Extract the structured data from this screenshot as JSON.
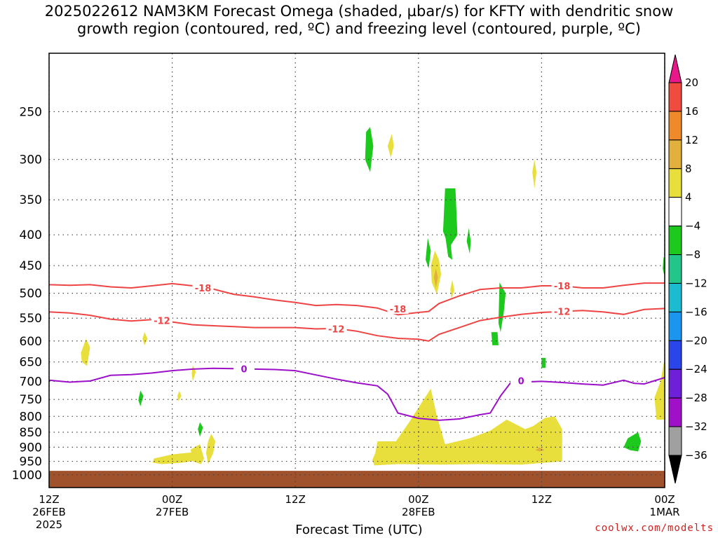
{
  "title": "2025022612 NAM3KM Forecast Omega (shaded, µbar/s) for KFTY with dendritic snow\ngrowth region (contoured, red, ºC) and freezing level (contoured, purple, ºC)",
  "credit": "coolwx.com/modelts",
  "chart_data": {
    "type": "time-height",
    "xlabel": "Forecast Time (UTC)",
    "ylabel": "",
    "x_ticks": [
      {
        "hour": 0,
        "label": [
          "12Z",
          "26FEB",
          "2025"
        ]
      },
      {
        "hour": 12,
        "label": [
          "00Z",
          "27FEB"
        ]
      },
      {
        "hour": 24,
        "label": [
          "12Z"
        ]
      },
      {
        "hour": 36,
        "label": [
          "00Z",
          "28FEB"
        ]
      },
      {
        "hour": 48,
        "label": [
          "12Z"
        ]
      },
      {
        "hour": 60,
        "label": [
          "00Z",
          "1MAR"
        ]
      }
    ],
    "xlim": [
      0,
      60
    ],
    "y_scale": "log-pressure",
    "ylim": [
      1050,
      200
    ],
    "y_ticks": [
      250,
      300,
      350,
      400,
      450,
      500,
      550,
      600,
      650,
      700,
      750,
      800,
      850,
      900,
      950,
      1000
    ],
    "grid": true,
    "ground": {
      "top_pressure": 985,
      "color": "#a0522d"
    },
    "colorbar": {
      "levels": [
        20,
        16,
        12,
        8,
        4,
        -4,
        -8,
        -12,
        -16,
        -20,
        -24,
        -28,
        -32,
        -36
      ],
      "colors": [
        "#e8178a",
        "#ef4b3f",
        "#ee8a2a",
        "#e2b03c",
        "#e8df3c",
        "#ffffff",
        "#1dc91d",
        "#22c58a",
        "#1cbcd0",
        "#1a96ee",
        "#2b46e8",
        "#6e20d8",
        "#a010c8",
        "#a0a0a0",
        "#000000"
      ]
    },
    "contours": [
      {
        "series": "dendritic snow growth region",
        "level": -18,
        "label": "-18",
        "color": "#ef4444",
        "points": [
          [
            0,
            484
          ],
          [
            2,
            485
          ],
          [
            4,
            484
          ],
          [
            6,
            488
          ],
          [
            8,
            490
          ],
          [
            10,
            486
          ],
          [
            12,
            482
          ],
          [
            14,
            486
          ],
          [
            16,
            492
          ],
          [
            18,
            502
          ],
          [
            20,
            507
          ],
          [
            22,
            513
          ],
          [
            24,
            518
          ],
          [
            26,
            524
          ],
          [
            28,
            522
          ],
          [
            30,
            524
          ],
          [
            32,
            529
          ],
          [
            34,
            543
          ],
          [
            36,
            538
          ],
          [
            37,
            536
          ],
          [
            38,
            520
          ],
          [
            40,
            505
          ],
          [
            42,
            493
          ],
          [
            44,
            490
          ],
          [
            46,
            490
          ],
          [
            48,
            486
          ],
          [
            50,
            486
          ],
          [
            52,
            490
          ],
          [
            54,
            490
          ],
          [
            56,
            485
          ],
          [
            58,
            481
          ],
          [
            60,
            481
          ]
        ],
        "label_at": [
          [
            15,
            490
          ],
          [
            34,
            531
          ],
          [
            50,
            486
          ]
        ]
      },
      {
        "series": "dendritic snow growth region",
        "level": -12,
        "label": "-12",
        "color": "#ef4444",
        "points": [
          [
            0,
            537
          ],
          [
            2,
            539
          ],
          [
            4,
            544
          ],
          [
            6,
            552
          ],
          [
            8,
            556
          ],
          [
            10,
            553
          ],
          [
            12,
            558
          ],
          [
            14,
            564
          ],
          [
            16,
            566
          ],
          [
            18,
            568
          ],
          [
            20,
            570
          ],
          [
            22,
            570
          ],
          [
            24,
            570
          ],
          [
            26,
            573
          ],
          [
            28,
            572
          ],
          [
            30,
            578
          ],
          [
            32,
            588
          ],
          [
            34,
            594
          ],
          [
            36,
            596
          ],
          [
            37,
            600
          ],
          [
            38,
            585
          ],
          [
            40,
            570
          ],
          [
            42,
            555
          ],
          [
            44,
            548
          ],
          [
            46,
            542
          ],
          [
            48,
            538
          ],
          [
            50,
            536
          ],
          [
            52,
            534
          ],
          [
            54,
            537
          ],
          [
            56,
            542
          ],
          [
            58,
            532
          ],
          [
            60,
            530
          ]
        ],
        "label_at": [
          [
            11,
            555
          ],
          [
            28,
            573
          ],
          [
            50,
            536
          ]
        ]
      },
      {
        "series": "freezing level",
        "level": 0,
        "label": "0",
        "color": "#9b10c8",
        "points": [
          [
            0,
            697
          ],
          [
            2,
            702
          ],
          [
            4,
            699
          ],
          [
            6,
            684
          ],
          [
            8,
            682
          ],
          [
            10,
            678
          ],
          [
            12,
            672
          ],
          [
            14,
            668
          ],
          [
            16,
            666
          ],
          [
            18,
            667
          ],
          [
            20,
            668
          ],
          [
            22,
            669
          ],
          [
            24,
            672
          ],
          [
            26,
            683
          ],
          [
            28,
            694
          ],
          [
            30,
            704
          ],
          [
            32,
            712
          ],
          [
            33,
            735
          ],
          [
            34,
            790
          ],
          [
            36,
            806
          ],
          [
            38,
            812
          ],
          [
            40,
            808
          ],
          [
            42,
            795
          ],
          [
            43,
            790
          ],
          [
            44,
            740
          ],
          [
            45,
            703
          ],
          [
            46,
            702
          ],
          [
            48,
            700
          ],
          [
            50,
            703
          ],
          [
            52,
            707
          ],
          [
            54,
            710
          ],
          [
            56,
            697
          ],
          [
            57,
            705
          ],
          [
            58,
            707
          ],
          [
            60,
            690
          ]
        ],
        "label_at": [
          [
            19,
            667
          ],
          [
            46,
            698
          ]
        ]
      }
    ],
    "omega_regions": [
      {
        "value": -8,
        "pts": [
          [
            31.3,
            265
          ],
          [
            31.6,
            285
          ],
          [
            31.3,
            315
          ],
          [
            30.8,
            300
          ],
          [
            30.9,
            270
          ]
        ]
      },
      {
        "value": 4,
        "pts": [
          [
            33.4,
            272
          ],
          [
            33.6,
            285
          ],
          [
            33.3,
            298
          ],
          [
            33.0,
            285
          ]
        ]
      },
      {
        "value": -8,
        "pts": [
          [
            38.6,
            335
          ],
          [
            39.6,
            335
          ],
          [
            39.8,
            400
          ],
          [
            39.0,
            420
          ],
          [
            38.4,
            395
          ]
        ]
      },
      {
        "value": -8,
        "pts": [
          [
            38.6,
            400
          ],
          [
            39.1,
            410
          ],
          [
            39.3,
            440
          ],
          [
            38.9,
            435
          ]
        ]
      },
      {
        "value": -8,
        "pts": [
          [
            36.9,
            405
          ],
          [
            37.2,
            425
          ],
          [
            37.0,
            455
          ],
          [
            36.7,
            440
          ]
        ]
      },
      {
        "value": -8,
        "pts": [
          [
            40.9,
            390
          ],
          [
            41.1,
            410
          ],
          [
            41.0,
            430
          ],
          [
            40.7,
            410
          ]
        ]
      },
      {
        "value": 4,
        "pts": [
          [
            37.6,
            425
          ],
          [
            38.0,
            440
          ],
          [
            38.2,
            465
          ],
          [
            37.8,
            502
          ],
          [
            37.3,
            480
          ],
          [
            37.2,
            450
          ]
        ]
      },
      {
        "value": 8,
        "pts": [
          [
            37.7,
            455
          ],
          [
            37.9,
            470
          ],
          [
            37.7,
            490
          ],
          [
            37.5,
            470
          ]
        ]
      },
      {
        "value": 4,
        "pts": [
          [
            39.3,
            475
          ],
          [
            39.5,
            495
          ],
          [
            39.2,
            510
          ],
          [
            39.1,
            492
          ]
        ]
      },
      {
        "value": -8,
        "pts": [
          [
            43.9,
            480
          ],
          [
            44.5,
            500
          ],
          [
            44.3,
            540
          ],
          [
            44.0,
            580
          ],
          [
            43.8,
            560
          ]
        ]
      },
      {
        "value": -8,
        "pts": [
          [
            43.1,
            580
          ],
          [
            43.7,
            580
          ],
          [
            43.8,
            610
          ],
          [
            43.2,
            610
          ]
        ]
      },
      {
        "value": 4,
        "pts": [
          [
            47.3,
            300
          ],
          [
            47.5,
            315
          ],
          [
            47.3,
            335
          ],
          [
            47.1,
            315
          ]
        ]
      },
      {
        "value": -8,
        "pts": [
          [
            59.9,
            435
          ],
          [
            60,
            440
          ],
          [
            60,
            470
          ],
          [
            59.8,
            455
          ]
        ]
      },
      {
        "value": 4,
        "pts": [
          [
            3.6,
            595
          ],
          [
            4.0,
            615
          ],
          [
            3.7,
            660
          ],
          [
            3.2,
            650
          ],
          [
            3.1,
            628
          ]
        ]
      },
      {
        "value": 4,
        "pts": [
          [
            9.3,
            580
          ],
          [
            9.6,
            595
          ],
          [
            9.3,
            610
          ],
          [
            9.1,
            595
          ]
        ]
      },
      {
        "value": -8,
        "pts": [
          [
            8.9,
            725
          ],
          [
            9.2,
            740
          ],
          [
            8.9,
            770
          ],
          [
            8.7,
            752
          ]
        ]
      },
      {
        "value": 4,
        "pts": [
          [
            14.0,
            658
          ],
          [
            14.3,
            675
          ],
          [
            14.0,
            700
          ],
          [
            13.9,
            680
          ]
        ]
      },
      {
        "value": 4,
        "pts": [
          [
            12.7,
            726
          ],
          [
            12.9,
            740
          ],
          [
            12.6,
            755
          ],
          [
            12.5,
            740
          ]
        ]
      },
      {
        "value": -8,
        "pts": [
          [
            14.7,
            818
          ],
          [
            15.0,
            835
          ],
          [
            14.7,
            865
          ],
          [
            14.5,
            840
          ]
        ]
      },
      {
        "value": 4,
        "pts": [
          [
            15.8,
            855
          ],
          [
            16.2,
            880
          ],
          [
            16.0,
            920
          ],
          [
            15.5,
            960
          ],
          [
            15.3,
            920
          ],
          [
            15.5,
            880
          ]
        ]
      },
      {
        "value": 4,
        "pts": [
          [
            10.2,
            940
          ],
          [
            12.0,
            925
          ],
          [
            14,
            918
          ],
          [
            14.6,
            945
          ],
          [
            13,
            955
          ],
          [
            11,
            960
          ],
          [
            10.1,
            955
          ]
        ]
      },
      {
        "value": 4,
        "pts": [
          [
            13.8,
            908
          ],
          [
            14.7,
            890
          ],
          [
            15.1,
            940
          ],
          [
            14.8,
            960
          ],
          [
            14.0,
            950
          ]
        ]
      },
      {
        "value": 4,
        "pts": [
          [
            32,
            880
          ],
          [
            33.8,
            880
          ],
          [
            35.1,
            818
          ],
          [
            36.3,
            760
          ],
          [
            37.2,
            720
          ],
          [
            37.8,
            800
          ],
          [
            38.6,
            890
          ],
          [
            41,
            870
          ],
          [
            43,
            845
          ],
          [
            44.6,
            810
          ],
          [
            46.4,
            840
          ],
          [
            47.2,
            830
          ],
          [
            48.3,
            805
          ],
          [
            49.3,
            800
          ],
          [
            50,
            840
          ],
          [
            50,
            950
          ],
          [
            46,
            962
          ],
          [
            42,
            960
          ],
          [
            38,
            962
          ],
          [
            34,
            960
          ],
          [
            31.7,
            965
          ],
          [
            31.5,
            945
          ],
          [
            31.8,
            920
          ]
        ]
      },
      {
        "value": 4,
        "pts": [
          [
            35.1,
            820
          ],
          [
            35.8,
            840
          ],
          [
            35.6,
            880
          ],
          [
            34.9,
            900
          ]
        ]
      },
      {
        "value": 8,
        "pts": [
          [
            47.8,
            900
          ],
          [
            48.3,
            910
          ],
          [
            47.8,
            915
          ],
          [
            47.4,
            910
          ]
        ]
      },
      {
        "value": -8,
        "pts": [
          [
            56.4,
            870
          ],
          [
            57.4,
            850
          ],
          [
            57.7,
            880
          ],
          [
            57.4,
            915
          ],
          [
            56.6,
            910
          ],
          [
            56.0,
            900
          ]
        ]
      },
      {
        "value": -8,
        "pts": [
          [
            48.0,
            640
          ],
          [
            48.4,
            640
          ],
          [
            48.4,
            665
          ],
          [
            48.0,
            665
          ]
        ]
      },
      {
        "value": 4,
        "pts": [
          [
            60,
            640
          ],
          [
            60,
            810
          ],
          [
            59.2,
            810
          ],
          [
            59.0,
            745
          ],
          [
            59.6,
            700
          ]
        ]
      }
    ]
  }
}
